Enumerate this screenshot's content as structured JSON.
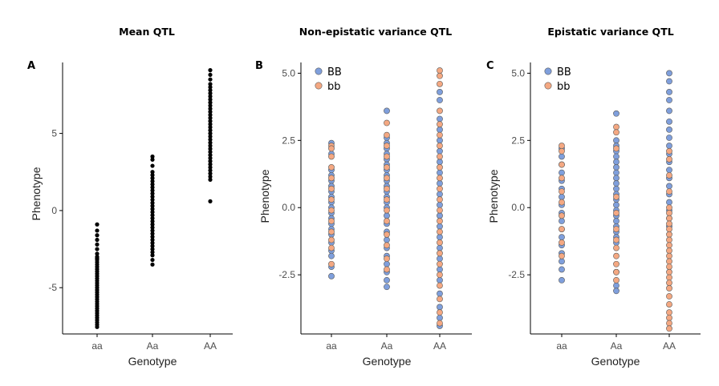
{
  "chart_data": [
    {
      "type": "scatter",
      "letter": "A",
      "title": "Mean QTL",
      "xlabel": "Genotype",
      "ylabel": "Phenotype",
      "categories": [
        "aa",
        "Aa",
        "AA"
      ],
      "ylim": [
        -8.0,
        9.6
      ],
      "yticks": [
        -5,
        0,
        5
      ],
      "ytick_labels": [
        "-5",
        "0",
        "5"
      ],
      "legend": null,
      "series": [
        {
          "color": "#000000",
          "points": [
            {
              "cat": "aa",
              "values": [
                -0.9,
                -1.3,
                -1.6,
                -1.9,
                -2.2,
                -2.5,
                -2.8,
                -3.0,
                -3.1,
                -3.2,
                -3.35,
                -3.5,
                -3.65,
                -3.8,
                -3.95,
                -4.1,
                -4.25,
                -4.4,
                -4.55,
                -4.7,
                -4.85,
                -5.0,
                -5.15,
                -5.3,
                -5.45,
                -5.6,
                -5.75,
                -5.9,
                -6.05,
                -6.2,
                -6.35,
                -6.5,
                -6.65,
                -6.8,
                -6.95,
                -7.1,
                -7.25,
                -7.4,
                -7.55
              ]
            },
            {
              "cat": "Aa",
              "values": [
                3.5,
                3.3,
                2.9,
                2.5,
                2.3,
                2.1,
                1.9,
                1.7,
                1.5,
                1.3,
                1.1,
                0.9,
                0.7,
                0.5,
                0.3,
                0.1,
                -0.1,
                -0.3,
                -0.5,
                -0.7,
                -0.9,
                -1.1,
                -1.3,
                -1.5,
                -1.7,
                -1.9,
                -2.1,
                -2.3,
                -2.5,
                -2.7,
                -2.9,
                -3.2,
                -3.5
              ]
            },
            {
              "cat": "AA",
              "values": [
                9.1,
                8.8,
                8.5,
                8.2,
                8.0,
                7.8,
                7.6,
                7.4,
                7.2,
                7.0,
                6.8,
                6.6,
                6.4,
                6.2,
                6.0,
                5.8,
                5.6,
                5.4,
                5.2,
                5.0,
                4.8,
                4.6,
                4.4,
                4.2,
                4.0,
                3.8,
                3.6,
                3.4,
                3.2,
                3.0,
                2.8,
                2.6,
                2.4,
                2.2,
                2.0,
                0.6
              ]
            }
          ]
        }
      ]
    },
    {
      "type": "scatter",
      "letter": "B",
      "title": "Non-epistatic variance QTL",
      "xlabel": "Genotype",
      "ylabel": "Phenotype",
      "categories": [
        "aa",
        "Aa",
        "AA"
      ],
      "ylim": [
        -4.7,
        5.4
      ],
      "yticks": [
        -2.5,
        0,
        2.5,
        5
      ],
      "ytick_labels": [
        "-2.5",
        "0.0",
        "2.5",
        "5.0"
      ],
      "legend": "top-left",
      "series": [
        {
          "name": "BB",
          "color": "#7f9fdc",
          "points": [
            {
              "cat": "aa",
              "values": [
                2.4,
                2.0,
                1.4,
                1.2,
                1.0,
                0.8,
                0.6,
                0.4,
                0.2,
                0.0,
                -0.2,
                -0.4,
                -0.6,
                -0.8,
                -1.0,
                -1.3,
                -1.6,
                -1.8,
                -2.2,
                -2.55
              ]
            },
            {
              "cat": "Aa",
              "values": [
                3.6,
                2.6,
                2.4,
                2.2,
                2.0,
                1.8,
                1.6,
                1.4,
                1.2,
                1.0,
                0.8,
                0.6,
                0.4,
                0.2,
                0.0,
                -0.3,
                -0.6,
                -0.9,
                -1.2,
                -1.5,
                -1.8,
                -2.1,
                -2.4,
                -2.7,
                -2.95
              ]
            },
            {
              "cat": "AA",
              "values": [
                4.3,
                4.0,
                3.3,
                2.9,
                2.5,
                2.1,
                1.7,
                1.3,
                0.9,
                0.5,
                0.1,
                -0.3,
                -0.7,
                -1.1,
                -1.5,
                -1.9,
                -2.3,
                -2.7,
                -3.2,
                -3.7,
                -4.1,
                -4.4
              ]
            }
          ]
        },
        {
          "name": "bb",
          "color": "#f4a882",
          "points": [
            {
              "cat": "aa",
              "values": [
                2.3,
                2.2,
                1.9,
                1.5,
                1.1,
                0.7,
                0.3,
                -0.1,
                -0.5,
                -0.9,
                -1.2,
                -1.5,
                -2.1
              ]
            },
            {
              "cat": "Aa",
              "values": [
                3.15,
                2.7,
                2.3,
                1.9,
                1.5,
                1.1,
                0.7,
                0.3,
                -0.1,
                -0.5,
                -1.0,
                -1.4,
                -1.9,
                -2.3
              ]
            },
            {
              "cat": "AA",
              "values": [
                5.1,
                4.9,
                4.6,
                3.6,
                3.1,
                2.7,
                2.3,
                1.9,
                1.5,
                1.1,
                0.7,
                0.3,
                -0.1,
                -0.5,
                -0.9,
                -1.3,
                -1.7,
                -2.1,
                -2.5,
                -2.9,
                -3.4,
                -3.9,
                -4.3
              ]
            }
          ]
        }
      ]
    },
    {
      "type": "scatter",
      "letter": "C",
      "title": "Epistatic variance QTL",
      "xlabel": "Genotype",
      "ylabel": "Phenotype",
      "categories": [
        "aa",
        "Aa",
        "AA"
      ],
      "ylim": [
        -4.7,
        5.4
      ],
      "yticks": [
        -2.5,
        0,
        2.5,
        5
      ],
      "ytick_labels": [
        "-2.5",
        "0.0",
        "2.5",
        "5.0"
      ],
      "legend": "top-left",
      "series": [
        {
          "name": "BB",
          "color": "#7f9fdc",
          "points": [
            {
              "cat": "aa",
              "values": [
                2.2,
                1.9,
                1.6,
                1.3,
                1.0,
                0.7,
                0.4,
                0.1,
                -0.2,
                -0.5,
                -0.8,
                -1.1,
                -1.4,
                -1.7,
                -2.0,
                -2.3,
                -2.7
              ]
            },
            {
              "cat": "Aa",
              "values": [
                3.5,
                2.5,
                2.3,
                2.1,
                1.9,
                1.7,
                1.5,
                1.3,
                1.1,
                0.9,
                0.7,
                0.5,
                0.3,
                0.1,
                -0.1,
                -0.3,
                -0.5,
                -0.7,
                -0.9,
                -1.1,
                -1.3,
                -2.4,
                -2.9,
                -3.1
              ]
            },
            {
              "cat": "AA",
              "values": [
                5.0,
                4.7,
                4.3,
                4.0,
                3.6,
                3.2,
                2.9,
                2.6,
                2.3,
                2.0,
                1.7,
                1.4,
                1.1,
                0.8,
                0.5,
                0.2,
                -0.1,
                -0.4,
                -0.7
              ]
            }
          ]
        },
        {
          "name": "bb",
          "color": "#f4a882",
          "points": [
            {
              "cat": "aa",
              "values": [
                2.3,
                2.1,
                1.6,
                1.1,
                0.6,
                0.2,
                -0.3,
                -0.8,
                -1.3,
                -1.8
              ]
            },
            {
              "cat": "Aa",
              "values": [
                3.0,
                2.8,
                2.2,
                0.4,
                -0.2,
                -0.8,
                -1.2,
                -1.5,
                -1.8,
                -2.1,
                -2.4,
                -2.7
              ]
            },
            {
              "cat": "AA",
              "values": [
                2.1,
                1.8,
                1.2,
                0.6,
                0.0,
                -0.2,
                -0.4,
                -0.6,
                -0.8,
                -1.0,
                -1.2,
                -1.4,
                -1.6,
                -1.8,
                -2.0,
                -2.2,
                -2.4,
                -2.6,
                -2.8,
                -3.0,
                -3.3,
                -3.6,
                -3.9,
                -4.1,
                -4.3,
                -4.5
              ]
            }
          ]
        }
      ]
    }
  ]
}
